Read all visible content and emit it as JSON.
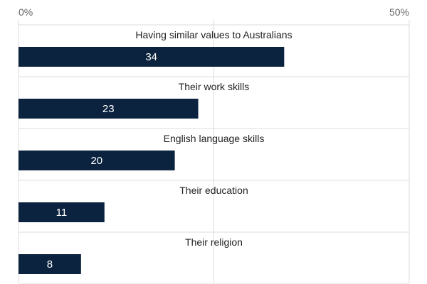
{
  "chart_data": {
    "type": "bar",
    "orientation": "horizontal",
    "categories": [
      "Having similar values to Australians",
      "Their work skills",
      "English language skills",
      "Their education",
      "Their religion"
    ],
    "values": [
      34,
      23,
      20,
      11,
      8
    ],
    "value_labels": [
      "34",
      "23",
      "20",
      "11",
      "8"
    ],
    "xlim": [
      0,
      50
    ],
    "tick_values": [
      0,
      25,
      50
    ],
    "tick_labels": [
      "0%",
      "",
      "50%"
    ],
    "grid": true,
    "bar_color": "#0c2340",
    "value_label_color": "#ffffff",
    "gridline_color": "#dcdcdc"
  }
}
